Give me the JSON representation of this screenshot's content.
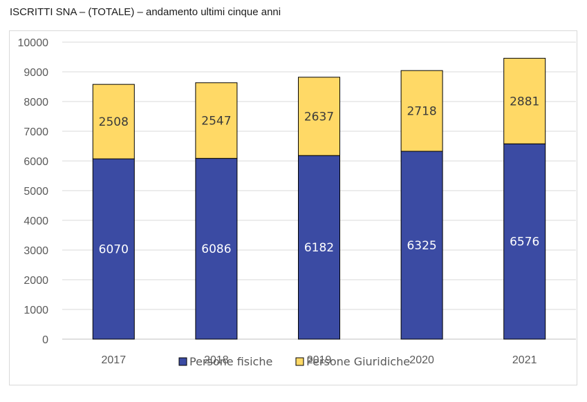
{
  "title": "ISCRITTI SNA – (TOTALE) – andamento ultimi cinque anni",
  "chart_data": {
    "type": "bar",
    "stacked": true,
    "title": "ISCRITTI SNA – (TOTALE) – andamento ultimi cinque anni",
    "categories": [
      "2017",
      "2018",
      "2019",
      "2020",
      "2021"
    ],
    "series": [
      {
        "name": "Persone fisiche",
        "values": [
          6070,
          6086,
          6182,
          6325,
          6576
        ],
        "color": "#3b4ba3",
        "label_color": "#ffffff"
      },
      {
        "name": "Persone Giuridiche",
        "values": [
          2508,
          2547,
          2637,
          2718,
          2881
        ],
        "color": "#ffd966",
        "label_color": "#3a3a3a"
      }
    ],
    "y_ticks": [
      "0",
      "1000",
      "2000",
      "3000",
      "4000",
      "5000",
      "6000",
      "7000",
      "8000",
      "9000",
      "10000"
    ],
    "ylim": [
      0,
      10000
    ],
    "xlabel": "",
    "ylabel": "",
    "grid": true,
    "legend": "bottom-center"
  }
}
